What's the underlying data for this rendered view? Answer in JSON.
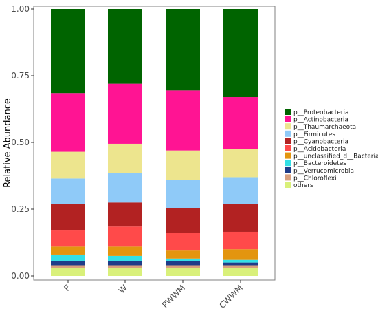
{
  "chart_data": {
    "type": "bar",
    "stacked": true,
    "ylabel": "Relative Abundance",
    "xlabel": "",
    "ylim": [
      0,
      1
    ],
    "yticks": [
      "0.00",
      "0.25",
      "0.50",
      "0.75",
      "1.00"
    ],
    "categories": [
      "F",
      "W",
      "PWWM",
      "CWWM"
    ],
    "legend_position": "right",
    "grid": false,
    "series": [
      {
        "name": "others",
        "color": "#d9f07a",
        "values": [
          0.03,
          0.03,
          0.03,
          0.03
        ]
      },
      {
        "name": "p__Chloroflexi",
        "color": "#d8a07e",
        "values": [
          0.01,
          0.01,
          0.01,
          0.01
        ]
      },
      {
        "name": "p__Verrucomicrobia",
        "color": "#1f3c88",
        "values": [
          0.015,
          0.015,
          0.015,
          0.01
        ]
      },
      {
        "name": "p__Bacteroidetes",
        "color": "#33e0e6",
        "values": [
          0.025,
          0.02,
          0.01,
          0.01
        ]
      },
      {
        "name": "p__unclassified_d__Bacteria",
        "color": "#e3950f",
        "values": [
          0.03,
          0.035,
          0.03,
          0.04
        ]
      },
      {
        "name": "p__Acidobacteria",
        "color": "#ff4a4a",
        "values": [
          0.06,
          0.075,
          0.065,
          0.065
        ]
      },
      {
        "name": "p__Cyanobacteria",
        "color": "#b22222",
        "values": [
          0.1,
          0.09,
          0.095,
          0.105
        ]
      },
      {
        "name": "p__Firmicutes",
        "color": "#8fcaf8",
        "values": [
          0.095,
          0.11,
          0.105,
          0.1
        ]
      },
      {
        "name": "p__Thaumarchaeota",
        "color": "#ede58e",
        "values": [
          0.1,
          0.11,
          0.11,
          0.105
        ]
      },
      {
        "name": "p__Actinobacteria",
        "color": "#ff1493",
        "values": [
          0.22,
          0.225,
          0.225,
          0.195
        ]
      },
      {
        "name": "p__Proteobacteria",
        "color": "#006400",
        "values": [
          0.315,
          0.28,
          0.305,
          0.33
        ]
      }
    ]
  }
}
